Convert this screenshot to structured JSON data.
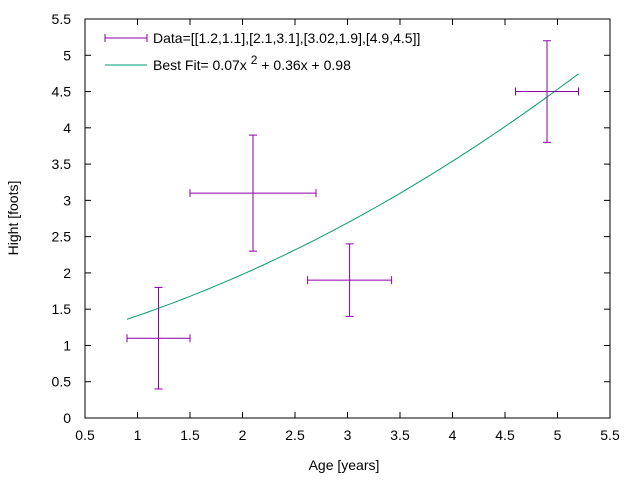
{
  "chart_data": {
    "type": "scatter",
    "title": "",
    "xlabel": "Age [years]",
    "ylabel": "Hight [foots]",
    "xlim": [
      0.5,
      5.5
    ],
    "ylim": [
      0,
      5.5
    ],
    "xticks": [
      "0.5",
      "1",
      "1.5",
      "2",
      "2.5",
      "3",
      "3.5",
      "4",
      "4.5",
      "5",
      "5.5"
    ],
    "yticks": [
      "0",
      "0.5",
      "1",
      "1.5",
      "2",
      "2.5",
      "3",
      "3.5",
      "4",
      "4.5",
      "5",
      "5.5"
    ],
    "grid": false,
    "legend_position": "top-left",
    "series": [
      {
        "name": "Data=[[1.2,1.1],[2.1,3.1],[3.02,1.9],[4.9,4.5]]",
        "kind": "errorbars",
        "color": "#8b00a8",
        "points": [
          {
            "x": 1.2,
            "y": 1.1,
            "xerr": 0.3,
            "yerr": 0.7
          },
          {
            "x": 2.1,
            "y": 3.1,
            "xerr": 0.6,
            "yerr": 0.8
          },
          {
            "x": 3.02,
            "y": 1.9,
            "xerr": 0.4,
            "yerr": 0.5
          },
          {
            "x": 4.9,
            "y": 4.5,
            "xerr": 0.3,
            "yerr": 0.7
          }
        ]
      },
      {
        "name_prefix": "Best Fit= 0.07x",
        "name_sup": "2",
        "name_suffix": " + 0.36x + 0.98",
        "kind": "line",
        "color": "#009e73",
        "coefficients": [
          0.07,
          0.36,
          0.98
        ],
        "x_range": [
          0.9,
          5.2
        ]
      }
    ]
  }
}
